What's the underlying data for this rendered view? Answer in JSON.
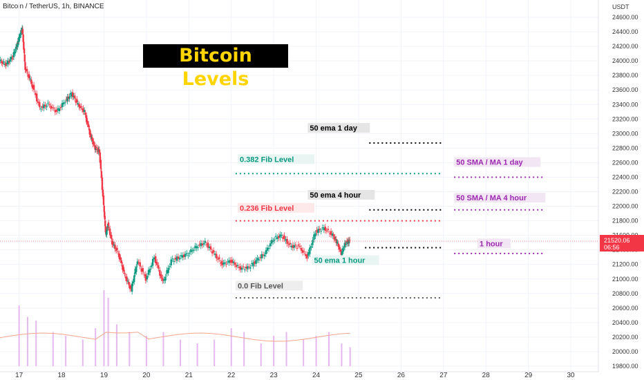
{
  "symbol": "Bitcoin / TetherUS, 1h, BINANCE",
  "title": "Bitcoin Levels",
  "price_tag": {
    "value": "21520.06",
    "countdown": "06:56",
    "color": "#f23645"
  },
  "chart_data": {
    "type": "line",
    "title": "Bitcoin Levels",
    "currency": "USDT",
    "ylim": [
      19800,
      24600
    ],
    "y_ticks": [
      24600,
      24400,
      24200,
      24000,
      23800,
      23600,
      23400,
      23200,
      23000,
      22800,
      22600,
      22400,
      22200,
      22000,
      21800,
      21600,
      21400,
      21200,
      21000,
      20800,
      20600,
      20400,
      20200,
      20000,
      19800
    ],
    "y_tick_labels": [
      "24600.00",
      "24400.00",
      "24200.00",
      "24000.00",
      "23800.00",
      "23600.00",
      "23400.00",
      "23200.00",
      "23000.00",
      "22800.00",
      "22600.00",
      "22400.00",
      "22200.00",
      "22000.00",
      "21800.00",
      "21600.00",
      "21400.00",
      "21200.00",
      "21000.00",
      "20800.00",
      "20600.00",
      "20400.00",
      "20200.00",
      "20000.00",
      "19800.00"
    ],
    "x_ticks": [
      {
        "day": 17,
        "label": "17"
      },
      {
        "day": 18,
        "label": "18"
      },
      {
        "day": 19,
        "label": "19"
      },
      {
        "day": 20,
        "label": "20"
      },
      {
        "day": 21,
        "label": "21"
      },
      {
        "day": 22,
        "label": "22"
      },
      {
        "day": 23,
        "label": "23"
      },
      {
        "day": 24,
        "label": "24"
      },
      {
        "day": 25,
        "label": "25"
      },
      {
        "day": 26,
        "label": "26"
      },
      {
        "day": 27,
        "label": "27"
      },
      {
        "day": 28,
        "label": "28"
      },
      {
        "day": 29,
        "label": "29"
      },
      {
        "day": 30,
        "label": "30"
      }
    ],
    "xlim": [
      16.55,
      30.65
    ],
    "price_path": {
      "x": [
        16.55,
        16.7,
        16.85,
        16.95,
        17.0,
        17.08,
        17.15,
        17.3,
        17.5,
        17.7,
        17.9,
        18.1,
        18.25,
        18.4,
        18.55,
        18.7,
        18.8,
        18.9,
        19.0,
        19.05,
        19.1,
        19.2,
        19.35,
        19.5,
        19.65,
        19.8,
        20.0,
        20.2,
        20.4,
        20.6,
        20.8,
        21.0,
        21.2,
        21.4,
        21.6,
        21.8,
        22.0,
        22.2,
        22.4,
        22.6,
        22.8,
        23.0,
        23.2,
        23.4,
        23.6,
        23.8,
        24.0,
        24.2,
        24.4,
        24.5,
        24.6,
        24.7,
        24.8
      ],
      "y": [
        24000,
        23950,
        24050,
        24200,
        24300,
        24450,
        23900,
        23700,
        23350,
        23400,
        23300,
        23450,
        23550,
        23400,
        23300,
        22950,
        22800,
        22750,
        22000,
        21600,
        21750,
        21500,
        21350,
        21050,
        20850,
        21250,
        21000,
        21300,
        20950,
        21250,
        21300,
        21350,
        21450,
        21500,
        21350,
        21200,
        21250,
        21150,
        21150,
        21250,
        21350,
        21550,
        21600,
        21450,
        21450,
        21300,
        21650,
        21700,
        21600,
        21500,
        21350,
        21500,
        21520
      ]
    },
    "volume_bars": [
      {
        "day": 17.0,
        "v": 1.6
      },
      {
        "day": 17.2,
        "v": 1.3
      },
      {
        "day": 17.4,
        "v": 1.2
      },
      {
        "day": 17.8,
        "v": 0.9
      },
      {
        "day": 18.1,
        "v": 0.8
      },
      {
        "day": 18.5,
        "v": 0.7
      },
      {
        "day": 18.8,
        "v": 1.0
      },
      {
        "day": 19.0,
        "v": 2.0
      },
      {
        "day": 19.1,
        "v": 1.8
      },
      {
        "day": 19.3,
        "v": 1.1
      },
      {
        "day": 19.6,
        "v": 0.9
      },
      {
        "day": 20.0,
        "v": 0.8
      },
      {
        "day": 20.4,
        "v": 0.9
      },
      {
        "day": 20.8,
        "v": 0.7
      },
      {
        "day": 21.2,
        "v": 0.6
      },
      {
        "day": 21.6,
        "v": 0.7
      },
      {
        "day": 22.0,
        "v": 1.0
      },
      {
        "day": 22.3,
        "v": 0.9
      },
      {
        "day": 22.7,
        "v": 0.6
      },
      {
        "day": 23.0,
        "v": 0.8
      },
      {
        "day": 23.3,
        "v": 0.9
      },
      {
        "day": 23.7,
        "v": 0.7
      },
      {
        "day": 24.0,
        "v": 0.8
      },
      {
        "day": 24.3,
        "v": 0.9
      },
      {
        "day": 24.6,
        "v": 0.6
      },
      {
        "day": 24.8,
        "v": 0.5
      }
    ],
    "levels": [
      {
        "label": "50 ema 1 day",
        "y": 22870,
        "x": [
          25.25,
          26.95
        ],
        "line_color": "#000000",
        "label_color": "#000000",
        "label_bg": "#e5e5e5",
        "label_day": 23.85,
        "label_price": 23050,
        "label_anchor": "start"
      },
      {
        "label": "0.382 Fib Level",
        "y": 22450,
        "x": [
          22.1,
          26.95
        ],
        "line_color": "#089981",
        "label_color": "#089981",
        "label_bg": "#e9f5f2",
        "label_day": 22.2,
        "label_price": 22620,
        "label_anchor": "start"
      },
      {
        "label": "50 SMA / MA 1 day",
        "y": 22400,
        "x": [
          27.25,
          29.35
        ],
        "line_color": "#9c27b0",
        "label_color": "#9c27b0",
        "label_bg": "#f2e6f4",
        "label_day": 27.3,
        "label_price": 22580,
        "label_anchor": "start"
      },
      {
        "label": "50 ema 4 hour",
        "y": 21950,
        "x": [
          25.25,
          26.95
        ],
        "line_color": "#000000",
        "label_color": "#000000",
        "label_bg": "#e5e5e5",
        "label_day": 23.85,
        "label_price": 22130,
        "label_anchor": "start"
      },
      {
        "label": "50 SMA / MA 4 hour",
        "y": 21950,
        "x": [
          27.25,
          29.35
        ],
        "line_color": "#9c27b0",
        "label_color": "#9c27b0",
        "label_bg": "#f2e6f4",
        "label_day": 27.3,
        "label_price": 22090,
        "label_anchor": "start"
      },
      {
        "label": "0.236 Fib Level",
        "y": 21800,
        "x": [
          22.1,
          26.95
        ],
        "line_color": "#f23645",
        "label_color": "#f23645",
        "label_bg": "#fde8ea",
        "label_day": 22.2,
        "label_price": 21950,
        "label_anchor": "start"
      },
      {
        "label": "1 hour",
        "y": 21350,
        "x": [
          27.25,
          29.35
        ],
        "line_color": "#9c27b0",
        "label_color": "#9c27b0",
        "label_bg": "#f2e6f4",
        "label_day": 27.85,
        "label_price": 21460,
        "label_anchor": "start"
      },
      {
        "label": "50 ema 1 hour",
        "y": 21430,
        "x": [
          25.15,
          26.95
        ],
        "line_color": "#000000",
        "label_color": "#089981",
        "label_bg": "#e9f5f2",
        "label_day": 23.95,
        "label_price": 21230,
        "label_anchor": "start"
      },
      {
        "label": "0.0 Fib Level",
        "y": 20740,
        "x": [
          22.1,
          26.95
        ],
        "line_color": "#555555",
        "label_color": "#555555",
        "label_bg": "#eeeeee",
        "label_day": 22.15,
        "label_price": 20880,
        "label_anchor": "start"
      }
    ],
    "current_price": 21520.06,
    "grid": true,
    "colors": {
      "up": "#089981",
      "down": "#f23645",
      "volume": "#e6b8ef",
      "ma_line": "#f5a58a",
      "current_line": "#f23645"
    }
  }
}
